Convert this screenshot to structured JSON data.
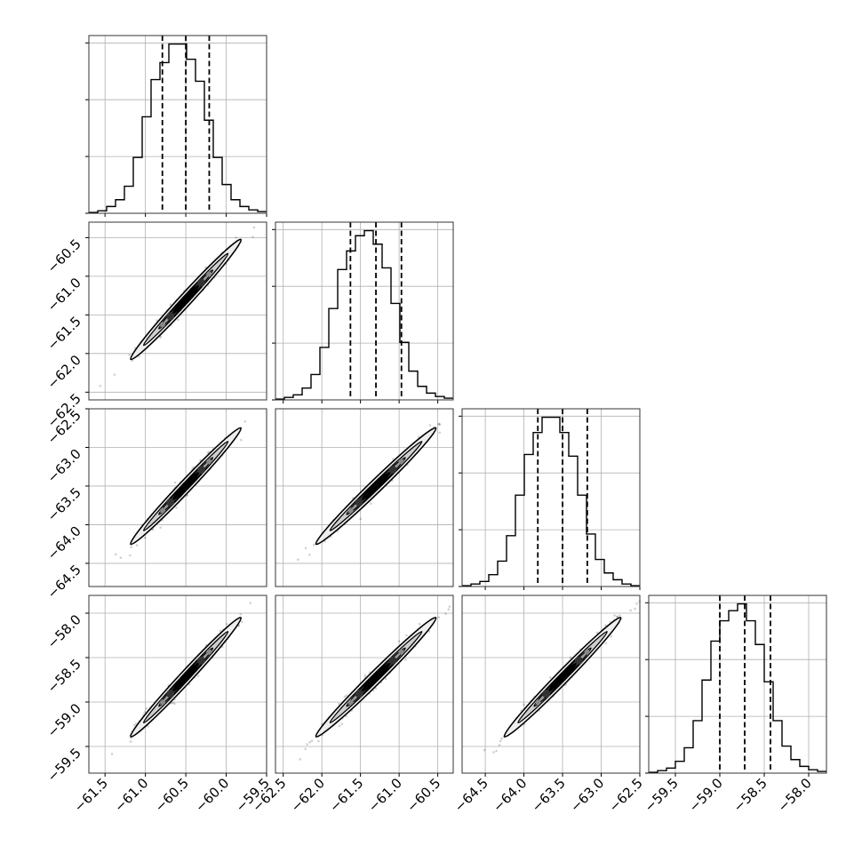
{
  "chart_data": {
    "type": "corner",
    "grid": true,
    "colors": {
      "density": "#000000",
      "grid": "#b0b0b0",
      "frame": "#333333"
    },
    "parameters": [
      {
        "range": [
          -61.7,
          -59.5
        ],
        "ticks": [
          -61.5,
          -61.0,
          -60.5,
          -60.0,
          -59.5
        ],
        "tick_labels": [
          "−61.5",
          "−61.0",
          "−60.5",
          "−60.0",
          "−59.5"
        ],
        "quantiles": [
          -60.79,
          -60.5,
          -60.21
        ],
        "hist_counts": [
          0.5,
          1.5,
          4,
          8,
          16,
          33,
          57,
          79,
          89,
          100,
          100,
          91,
          78,
          55,
          33,
          17,
          8,
          4,
          2,
          1
        ]
      },
      {
        "range": [
          -62.6,
          -60.3
        ],
        "ticks": [
          -62.5,
          -62.0,
          -61.5,
          -61.0,
          -60.5
        ],
        "tick_labels": [
          "−62.5",
          "−62.0",
          "−61.5",
          "−61.0",
          "−60.5"
        ],
        "quantiles": [
          -61.63,
          -61.3,
          -60.97
        ],
        "hist_counts": [
          0.5,
          1.5,
          3,
          7,
          15,
          31,
          54,
          77,
          88,
          97,
          100,
          92,
          78,
          57,
          34,
          17,
          8,
          4,
          2,
          1
        ]
      },
      {
        "range": [
          -64.8,
          -62.5
        ],
        "ticks": [
          -64.5,
          -64.0,
          -63.5,
          -63.0,
          -62.5
        ],
        "tick_labels": [
          "−64.5",
          "−64.0",
          "−63.5",
          "−63.0",
          "−62.5"
        ],
        "quantiles": [
          -63.82,
          -63.5,
          -63.18
        ],
        "hist_counts": [
          0.5,
          1.5,
          3,
          7,
          15,
          30,
          54,
          78,
          91,
          100,
          100,
          91,
          77,
          54,
          31,
          16,
          8,
          4,
          1.5,
          0.5
        ]
      },
      {
        "range": [
          -59.8,
          -57.8
        ],
        "ticks": [
          -59.5,
          -59.0,
          -58.5,
          -58.0
        ],
        "tick_labels": [
          "−59.5",
          "−59.0",
          "−58.5",
          "−58.0"
        ],
        "quantiles": [
          -59.0,
          -58.72,
          -58.43
        ],
        "hist_counts": [
          0.5,
          1.5,
          3,
          7,
          15,
          31,
          55,
          78,
          90,
          96,
          100,
          90,
          76,
          54,
          31,
          16,
          8,
          4,
          2,
          1
        ]
      }
    ]
  }
}
